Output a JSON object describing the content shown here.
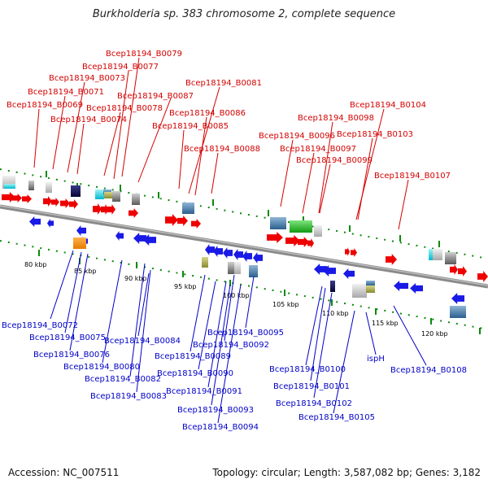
{
  "title": "Burkholderia sp. 383 chromosome 2, complete sequence",
  "footer": {
    "accession": "Accession: NC_007511",
    "summary": "Topology: circular; Length: 3,587,082 bp; Genes: 3,182"
  },
  "colors": {
    "forward_gene": "#ee0000",
    "reverse_gene": "#1a1ae6",
    "top_label": "#d40000",
    "bottom_label": "#0000c8",
    "backbone": "#8a8a8a",
    "tick": "#0a8a0a"
  },
  "scale_labels": [
    "80 kbp",
    "85 kbp",
    "90 kbp",
    "95 kbp",
    "100 kbp",
    "105 kbp",
    "110 kbp",
    "115 kbp",
    "120 kbp"
  ],
  "top_labels": [
    "Bcep18194_B0079",
    "Bcep18194_B0077",
    "Bcep18194_B0073",
    "Bcep18194_B0081",
    "Bcep18194_B0071",
    "Bcep18194_B0087",
    "Bcep18194_B0069",
    "Bcep18194_B0078",
    "Bcep18194_B0074",
    "Bcep18194_B0086",
    "Bcep18194_B0085",
    "Bcep18194_B0104",
    "Bcep18194_B0098",
    "Bcep18194_B0096",
    "Bcep18194_B0103",
    "Bcep18194_B0097",
    "Bcep18194_B0088",
    "Bcep18194_B0099",
    "Bcep18194_B0107"
  ],
  "bottom_labels": [
    "Bcep18194_B0072",
    "Bcep18194_B0075",
    "Bcep18194_B0076",
    "Bcep18194_B0080",
    "Bcep18194_B0082",
    "Bcep18194_B0083",
    "Bcep18194_B0084",
    "Bcep18194_B0089",
    "Bcep18194_B0090",
    "Bcep18194_B0091",
    "Bcep18194_B0092",
    "Bcep18194_B0093",
    "Bcep18194_B0094",
    "Bcep18194_B0095",
    "Bcep18194_B0100",
    "Bcep18194_B0101",
    "Bcep18194_B0102",
    "Bcep18194_B0105",
    "ispH",
    "Bcep18194_B0108"
  ]
}
